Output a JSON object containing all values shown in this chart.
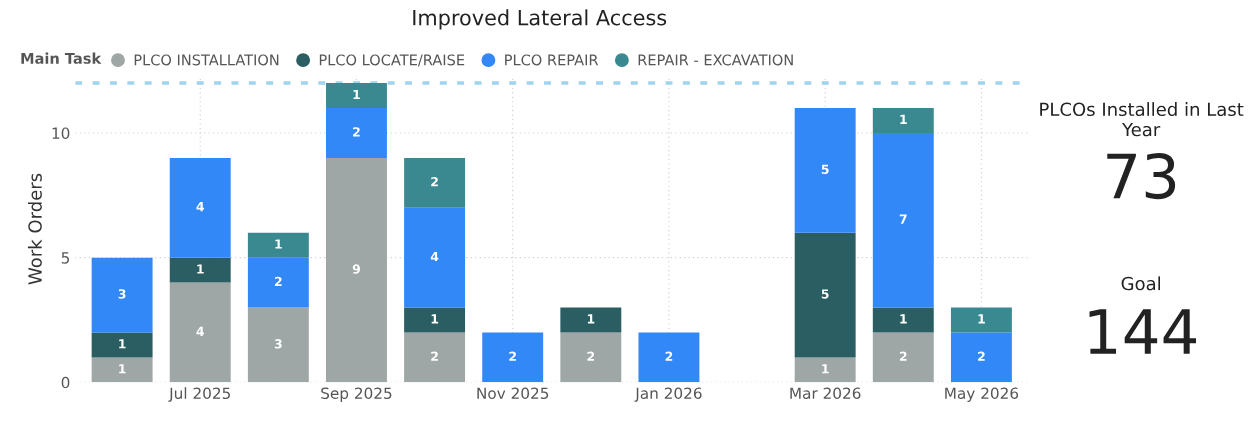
{
  "chart_data": [
    {
      "type": "bar",
      "title": "Improved Lateral Access",
      "ylabel": "Work Orders",
      "legend_title": "Main Task",
      "legend": "top left",
      "stacked": true,
      "data_labels": true,
      "grid": true,
      "categories": [
        null,
        "Jul 2025",
        null,
        "Sep 2025",
        null,
        "Nov 2025",
        null,
        "Jan 2026",
        null,
        "Mar 2026",
        null,
        "May 2026"
      ],
      "series": [
        {
          "name": "PLCO INSTALLATION",
          "color": "#9ea7a5",
          "values": [
            1,
            4,
            3,
            9,
            2,
            null,
            2,
            null,
            null,
            1,
            2,
            null
          ]
        },
        {
          "name": "PLCO LOCATE/RAISE",
          "color": "#2b5e63",
          "values": [
            1,
            1,
            null,
            null,
            1,
            null,
            1,
            null,
            null,
            5,
            1,
            null
          ]
        },
        {
          "name": "PLCO REPAIR",
          "color": "#3388f8",
          "values": [
            3,
            4,
            2,
            2,
            4,
            2,
            null,
            2,
            null,
            5,
            7,
            2
          ]
        },
        {
          "name": "REPAIR - EXCAVATION",
          "color": "#3b8990",
          "values": [
            null,
            null,
            1,
            1,
            2,
            null,
            null,
            null,
            null,
            null,
            1,
            1
          ]
        }
      ],
      "ylim": [
        0,
        12.3
      ],
      "yticks": [
        0,
        5,
        10
      ],
      "ref_lines": [
        {
          "axis": "y",
          "value": 12,
          "color": "#9fd3f0",
          "line_style": "dotted"
        }
      ]
    },
    {
      "type": "other",
      "annotations": [
        "PLCOs Installed in Last Year",
        "73",
        "Goal",
        "144"
      ]
    }
  ]
}
